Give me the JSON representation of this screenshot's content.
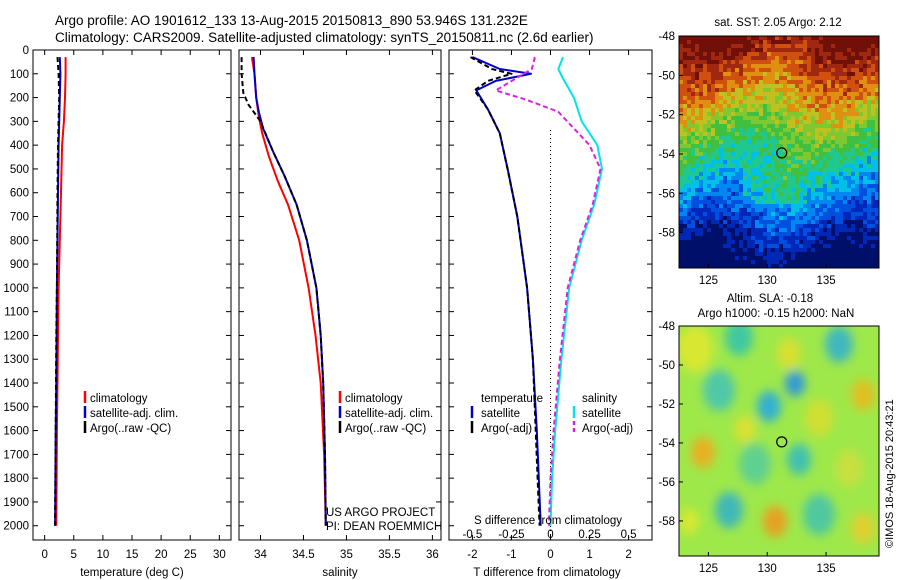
{
  "title": {
    "line1": "Argo profile: AO 1901612_133 13-Aug-2015 20150813_890 53.946S 131.232E",
    "line2": "Climatology: CARS2009. Satellite-adjusted climatology: synTS_20150811.nc (2.6d earlier)"
  },
  "colors": {
    "climatology": "#ff0000",
    "satellite": "#0000cc",
    "argo": "#000000",
    "sal_satellite": "#00e5e5",
    "sal_argo": "#e020e0"
  },
  "watermark": "©IMOS 18-Aug-2015 20:43:21",
  "credits": {
    "line1": "US ARGO PROJECT",
    "line2": "PI: DEAN ROEMMICH"
  },
  "chart_data": [
    {
      "id": "temperature",
      "type": "line",
      "xlabel": "temperature (deg C)",
      "xlim": [
        -2,
        32
      ],
      "xticks": [
        0,
        5,
        10,
        15,
        20,
        25,
        30
      ],
      "ylim": [
        0,
        2060
      ],
      "yticks": [
        0,
        100,
        200,
        300,
        400,
        500,
        600,
        700,
        800,
        900,
        1000,
        1100,
        1200,
        1300,
        1400,
        1500,
        1600,
        1700,
        1800,
        1900,
        2000
      ],
      "legend": [
        "climatology",
        "satellite-adj. clim.",
        "Argo(..raw -QC)"
      ],
      "series": [
        {
          "name": "climatology",
          "color": "#ff0000",
          "x": [
            3.6,
            3.6,
            3.5,
            3.3,
            3.0,
            2.8,
            2.6,
            2.4,
            2.3,
            2.2,
            2.1,
            2.05,
            2.0
          ],
          "y": [
            30,
            100,
            200,
            300,
            400,
            600,
            800,
            1000,
            1200,
            1400,
            1600,
            1800,
            2000
          ]
        },
        {
          "name": "satellite-adj. clim.",
          "color": "#0000cc",
          "x": [
            2.6,
            2.7,
            2.6,
            2.5,
            2.4,
            2.3,
            2.2,
            2.1,
            2.05,
            2.0,
            1.9,
            1.85,
            1.8
          ],
          "y": [
            30,
            100,
            200,
            300,
            400,
            600,
            800,
            1000,
            1200,
            1400,
            1600,
            1800,
            2000
          ]
        },
        {
          "name": "Argo(..raw -QC)",
          "color": "#000000",
          "x": [
            2.2,
            2.4,
            2.5,
            2.4,
            2.3,
            2.2,
            2.15,
            2.1,
            2.0,
            1.95,
            1.9,
            1.85,
            1.8
          ],
          "y": [
            30,
            100,
            200,
            300,
            400,
            600,
            800,
            1000,
            1200,
            1400,
            1600,
            1800,
            2000
          ]
        }
      ]
    },
    {
      "id": "salinity",
      "type": "line",
      "xlabel": "salinity",
      "xlim": [
        33.75,
        36.1
      ],
      "xticks": [
        34,
        34.5,
        35,
        35.5,
        36
      ],
      "xticklabels": [
        "34",
        "34.5",
        "35",
        "35.5",
        "36"
      ],
      "ylim": [
        0,
        2060
      ],
      "legend": [
        "climatology",
        "satellite-adj. clim.",
        "Argo(..raw -QC)"
      ],
      "series": [
        {
          "name": "climatology",
          "color": "#ff0000",
          "x": [
            33.9,
            33.93,
            33.95,
            33.98,
            34.02,
            34.1,
            34.2,
            34.32,
            34.45,
            34.56,
            34.64,
            34.7,
            34.74,
            34.76
          ],
          "y": [
            30,
            100,
            200,
            280,
            350,
            450,
            550,
            650,
            800,
            1000,
            1200,
            1400,
            1700,
            2000
          ]
        },
        {
          "name": "satellite-adj. clim.",
          "color": "#0000cc",
          "x": [
            33.92,
            33.93,
            33.95,
            33.98,
            34.03,
            34.15,
            34.28,
            34.42,
            34.54,
            34.65,
            34.7,
            34.73,
            34.75,
            34.76
          ],
          "y": [
            30,
            100,
            200,
            260,
            330,
            430,
            530,
            650,
            800,
            1000,
            1200,
            1400,
            1700,
            2000
          ]
        },
        {
          "name": "Argo(..raw -QC)",
          "color": "#000000",
          "x": [
            33.78,
            33.78,
            33.8,
            33.86,
            34.0,
            34.15,
            34.28,
            34.42,
            34.54,
            34.65,
            34.7,
            34.73,
            34.75,
            34.76
          ],
          "y": [
            30,
            100,
            180,
            230,
            300,
            430,
            530,
            650,
            800,
            1000,
            1200,
            1400,
            1700,
            2000
          ]
        }
      ]
    },
    {
      "id": "difference",
      "type": "line",
      "xlabel": "T difference from climatology",
      "secondary_label": "S difference from climatology",
      "xlim": [
        -2.6,
        2.6
      ],
      "xticks": [
        -2,
        -1,
        0,
        1,
        2
      ],
      "sticks": [
        -0.5,
        -0.25,
        0,
        0.25,
        0.5
      ],
      "sticklabels": [
        "-0.5",
        "-0.25",
        "0",
        "0.25",
        "0.5"
      ],
      "ylim": [
        0,
        2060
      ],
      "legend_groups": [
        {
          "heading": "temperature",
          "items": [
            "satellite",
            "Argo(-adj)"
          ]
        },
        {
          "heading": "salinity",
          "items": [
            "satellite",
            "Argo(-adj)"
          ]
        }
      ],
      "series": [
        {
          "name": "satellite",
          "group": "temperature",
          "color": "#0000cc",
          "x": [
            -2.0,
            -1.3,
            -0.5,
            -1.4,
            -1.9,
            -1.6,
            -1.3,
            -1.1,
            -0.85,
            -0.6,
            -0.45,
            -0.35,
            -0.3,
            -0.25
          ],
          "y": [
            30,
            80,
            100,
            130,
            170,
            250,
            350,
            500,
            700,
            1000,
            1300,
            1600,
            1800,
            2000
          ]
        },
        {
          "name": "Argo(-adj)",
          "group": "temperature",
          "color": "#000000",
          "x": [
            -2.05,
            -1.5,
            -1.0,
            -1.6,
            -1.95,
            -1.6,
            -1.3,
            -1.1,
            -0.85,
            -0.6,
            -0.45,
            -0.38,
            -0.33,
            -0.28
          ],
          "y": [
            30,
            80,
            100,
            130,
            170,
            250,
            350,
            500,
            700,
            1000,
            1300,
            1600,
            1800,
            2000
          ]
        },
        {
          "name": "satellite",
          "group": "salinity",
          "color": "#00e5e5",
          "x": [
            0.08,
            0.05,
            0.08,
            0.15,
            0.2,
            0.3,
            0.33,
            0.28,
            0.2,
            0.12,
            0.07,
            0.03,
            0.01,
            0.0
          ],
          "y": [
            30,
            80,
            120,
            200,
            300,
            400,
            500,
            650,
            800,
            1000,
            1300,
            1600,
            1800,
            2000
          ]
        },
        {
          "name": "Argo(-adj)",
          "group": "salinity",
          "color": "#e020e0",
          "x": [
            -0.1,
            -0.12,
            -0.35,
            -0.15,
            0.05,
            0.25,
            0.32,
            0.27,
            0.19,
            0.11,
            0.06,
            0.02,
            0.0,
            -0.01
          ],
          "y": [
            30,
            80,
            170,
            210,
            260,
            400,
            500,
            650,
            800,
            1000,
            1300,
            1600,
            1800,
            2000
          ]
        }
      ]
    },
    {
      "id": "sst_map",
      "type": "heatmap",
      "title": "sat. SST: 2.05 Argo: 2.12",
      "xlim": [
        122.5,
        139.5
      ],
      "ylim": [
        -59.8,
        -48
      ],
      "xticks": [
        125,
        130,
        135
      ],
      "yticks": [
        -48,
        -50,
        -52,
        -54,
        -56,
        -58
      ],
      "marker": {
        "lon": 131.232,
        "lat": -53.946
      }
    },
    {
      "id": "sla_map",
      "type": "heatmap",
      "title": "Altim. SLA: -0.18",
      "subtitle": "Argo h1000: -0.15 h2000: NaN",
      "xlim": [
        122.5,
        139.5
      ],
      "ylim": [
        -59.8,
        -48
      ],
      "xticks": [
        125,
        130,
        135
      ],
      "yticks": [
        -48,
        -50,
        -52,
        -54,
        -56,
        -58
      ],
      "marker": {
        "lon": 131.232,
        "lat": -53.946
      }
    }
  ]
}
